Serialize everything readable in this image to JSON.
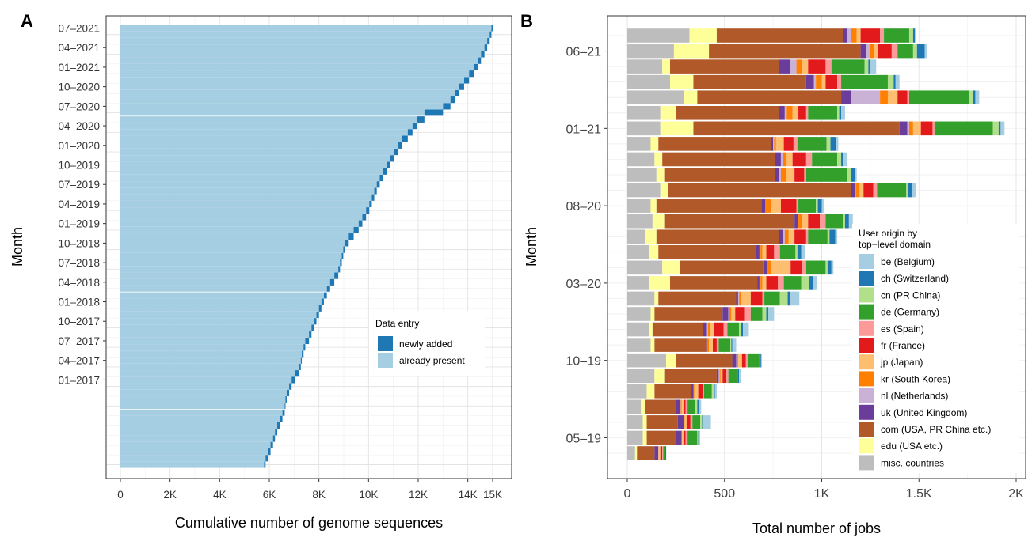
{
  "chart_data": [
    {
      "panel_letter": "A",
      "type": "bar",
      "orientation": "horizontal",
      "stacked": true,
      "title": "",
      "xlabel": "Cumulative number of genome sequences",
      "ylabel": "Month",
      "xlim": [
        0,
        15500
      ],
      "x_ticks": [
        0,
        2000,
        4000,
        6000,
        8000,
        10000,
        12000,
        14000,
        15000
      ],
      "x_tick_labels": [
        "0",
        "2K",
        "4K",
        "6K",
        "8K",
        "10K",
        "12K",
        "14K",
        "15K"
      ],
      "y_tick_labels": [
        "07–2021",
        "04–2021",
        "01–2021",
        "10–2020",
        "07–2020",
        "04–2020",
        "01–2020",
        "10–2019",
        "07–2019",
        "04–2019",
        "01–2019",
        "10–2018",
        "07–2018",
        "04–2018",
        "01–2018",
        "10–2017",
        "07–2017",
        "04–2017",
        "01–2017"
      ],
      "grid": true,
      "legend_position": "inside-bottom-right",
      "legend_title": "Data entry",
      "series": [
        {
          "name": "newly added",
          "color": "#1f78b4"
        },
        {
          "name": "already present",
          "color": "#a6cee3"
        }
      ],
      "category_order": "oldest-to-newest (01-2017 at bottom, 07-2021 at top)",
      "cumulative_totals": [
        5850,
        5950,
        6050,
        6150,
        6230,
        6320,
        6430,
        6530,
        6620,
        6650,
        6700,
        6800,
        6900,
        7050,
        7200,
        7270,
        7310,
        7380,
        7450,
        7600,
        7700,
        7800,
        7900,
        8000,
        8100,
        8200,
        8320,
        8450,
        8620,
        8780,
        8850,
        8920,
        8980,
        9050,
        9200,
        9400,
        9600,
        9750,
        9900,
        10030,
        10130,
        10230,
        10330,
        10450,
        10590,
        10730,
        10870,
        11030,
        11200,
        11330,
        11580,
        11770,
        11950,
        12250,
        13000,
        13300,
        13470,
        13650,
        13850,
        14050,
        14250,
        14420,
        14530,
        14670,
        14780,
        14880,
        14950,
        15020
      ]
    },
    {
      "panel_letter": "B",
      "type": "bar",
      "orientation": "horizontal",
      "stacked": true,
      "title": "",
      "xlabel": "Total number of jobs",
      "ylabel": "Month",
      "xlim": [
        0,
        2050
      ],
      "x_ticks": [
        0,
        500,
        1000,
        1500,
        2000
      ],
      "x_tick_labels": [
        "0",
        "500",
        "1K",
        "1.5K",
        "2K"
      ],
      "y_tick_labels": [
        "06–21",
        "01–21",
        "08–20",
        "03–20",
        "10–19",
        "05–19"
      ],
      "grid": true,
      "legend_position": "inside-right",
      "legend_title": [
        "User origin by",
        "top−level domain"
      ],
      "series": [
        {
          "name": "be (Belgium)",
          "color": "#a6cee3"
        },
        {
          "name": "ch (Switzerland)",
          "color": "#1f78b4"
        },
        {
          "name": "cn (PR China)",
          "color": "#b2df8a"
        },
        {
          "name": "de (Germany)",
          "color": "#33a02c"
        },
        {
          "name": "es (Spain)",
          "color": "#fb9a99"
        },
        {
          "name": "fr (France)",
          "color": "#e31a1c"
        },
        {
          "name": "jp (Japan)",
          "color": "#fdbf6f"
        },
        {
          "name": "kr (South Korea)",
          "color": "#ff7f00"
        },
        {
          "name": "nl (Netherlands)",
          "color": "#cab2d6"
        },
        {
          "name": "uk (United Kingdom)",
          "color": "#6a3d9a"
        },
        {
          "name": "com (USA, PR China etc.)",
          "color": "#b15928"
        },
        {
          "name": "edu (USA etc.)",
          "color": "#ffff99"
        },
        {
          "name": "misc. countries",
          "color": "#bdbdbd"
        }
      ],
      "stack_order": [
        "misc. countries",
        "edu (USA etc.)",
        "com (USA, PR China etc.)",
        "uk (United Kingdom)",
        "nl (Netherlands)",
        "kr (South Korea)",
        "jp (Japan)",
        "fr (France)",
        "es (Spain)",
        "de (Germany)",
        "cn (PR China)",
        "ch (Switzerland)",
        "be (Belgium)"
      ],
      "rows_bottom_to_top": [
        [
          40,
          10,
          90,
          20,
          0,
          0,
          10,
          10,
          5,
          10,
          0,
          5,
          0
        ],
        [
          80,
          20,
          150,
          30,
          0,
          0,
          10,
          10,
          10,
          50,
          5,
          5,
          5
        ],
        [
          80,
          20,
          160,
          30,
          0,
          5,
          10,
          20,
          10,
          40,
          10,
          5,
          40
        ],
        [
          70,
          20,
          160,
          20,
          5,
          5,
          10,
          10,
          10,
          40,
          10,
          10,
          10
        ],
        [
          100,
          40,
          190,
          10,
          0,
          5,
          20,
          25,
          5,
          40,
          10,
          5,
          10
        ],
        [
          140,
          50,
          270,
          10,
          5,
          5,
          10,
          20,
          10,
          50,
          0,
          5,
          10
        ],
        [
          200,
          50,
          290,
          20,
          5,
          5,
          20,
          20,
          10,
          60,
          5,
          5,
          0
        ],
        [
          120,
          20,
          260,
          10,
          0,
          10,
          20,
          20,
          10,
          60,
          5,
          5,
          20
        ],
        [
          110,
          20,
          260,
          20,
          5,
          10,
          20,
          50,
          20,
          60,
          10,
          10,
          30
        ],
        [
          120,
          20,
          350,
          30,
          5,
          10,
          20,
          50,
          30,
          60,
          20,
          10,
          30
        ],
        [
          140,
          20,
          400,
          10,
          5,
          10,
          50,
          60,
          10,
          80,
          40,
          10,
          50
        ],
        [
          110,
          110,
          450,
          10,
          5,
          10,
          20,
          60,
          30,
          90,
          40,
          20,
          20
        ],
        [
          180,
          90,
          430,
          20,
          0,
          20,
          100,
          60,
          20,
          100,
          10,
          20,
          10
        ],
        [
          110,
          50,
          500,
          20,
          5,
          10,
          20,
          40,
          30,
          80,
          10,
          20,
          20
        ],
        [
          90,
          60,
          630,
          20,
          10,
          20,
          30,
          60,
          10,
          100,
          10,
          30,
          10
        ],
        [
          130,
          60,
          670,
          20,
          0,
          20,
          30,
          60,
          30,
          90,
          10,
          20,
          20
        ],
        [
          120,
          30,
          540,
          20,
          0,
          30,
          50,
          80,
          10,
          90,
          10,
          20,
          10
        ],
        [
          170,
          40,
          940,
          20,
          5,
          20,
          20,
          50,
          20,
          150,
          10,
          20,
          20
        ],
        [
          150,
          40,
          570,
          20,
          10,
          30,
          40,
          50,
          10,
          210,
          20,
          20,
          10
        ],
        [
          140,
          40,
          580,
          30,
          10,
          20,
          30,
          70,
          30,
          130,
          20,
          10,
          20
        ],
        [
          120,
          40,
          580,
          10,
          5,
          10,
          40,
          50,
          20,
          150,
          20,
          30,
          10
        ],
        [
          170,
          170,
          1060,
          40,
          10,
          20,
          40,
          60,
          10,
          300,
          30,
          10,
          20
        ],
        [
          170,
          80,
          530,
          30,
          10,
          30,
          30,
          40,
          10,
          150,
          10,
          10,
          20
        ],
        [
          290,
          70,
          740,
          50,
          150,
          40,
          50,
          50,
          10,
          310,
          20,
          10,
          20
        ],
        [
          220,
          120,
          580,
          40,
          10,
          30,
          20,
          60,
          20,
          240,
          30,
          10,
          20
        ],
        [
          180,
          40,
          560,
          60,
          30,
          30,
          30,
          90,
          30,
          170,
          20,
          10,
          30
        ],
        [
          240,
          180,
          780,
          30,
          20,
          20,
          20,
          70,
          30,
          80,
          20,
          40,
          10
        ],
        [
          320,
          140,
          650,
          20,
          20,
          30,
          20,
          100,
          20,
          130,
          20,
          10,
          0
        ]
      ]
    }
  ]
}
